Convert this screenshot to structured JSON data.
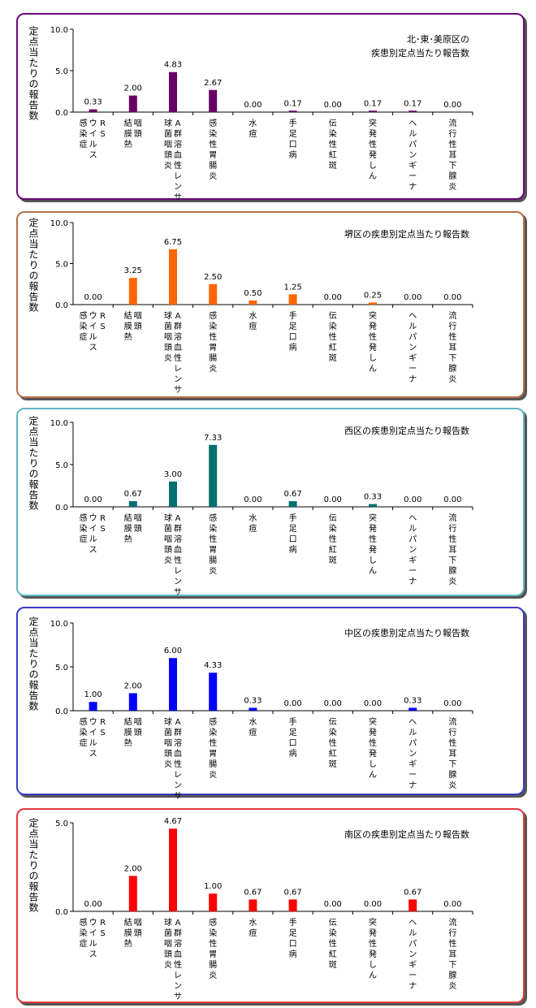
{
  "categories_lines": [
    [
      "RS",
      "ウイルス",
      "感染症"
    ],
    [
      "咽頭",
      "結膜熱"
    ],
    [
      "A群溶血性レンサ",
      "球菌咽頭炎"
    ],
    [
      "感染性胃腸炎"
    ],
    [
      "水痘"
    ],
    [
      "手足口病"
    ],
    [
      "伝染性紅斑"
    ],
    [
      "突発性発しん"
    ],
    [
      "ヘルパンギーナ"
    ],
    [
      "流行性耳下腺炎"
    ]
  ],
  "chart_data": [
    {
      "type": "bar",
      "title": "北･東･美原区の\n疾患別定点当たり報告数",
      "ylabel": "定点当たりの報告数",
      "categories": [
        "RSウイルス感染症",
        "咽頭結膜熱",
        "A群溶血性レンサ球菌咽頭炎",
        "感染性胃腸炎",
        "水痘",
        "手足口病",
        "伝染性紅斑",
        "突発性発しん",
        "ヘルパンギーナ",
        "流行性耳下腺炎"
      ],
      "values": [
        0.33,
        2.0,
        4.83,
        2.67,
        0.0,
        0.17,
        0.0,
        0.17,
        0.17,
        0.0
      ],
      "value_labels": [
        "0.33",
        "2.00",
        "4.83",
        "2.67",
        "0.00",
        "0.17",
        "0.00",
        "0.17",
        "0.17",
        "0.00"
      ],
      "ylim": [
        0,
        10
      ],
      "yticks": [
        "0.0",
        "5.0",
        "10.0"
      ],
      "color": "#660066",
      "border_color": "#6a0a7a"
    },
    {
      "type": "bar",
      "title": "堺区の疾患別定点当たり報告数",
      "ylabel": "定点当たりの報告数",
      "categories": [
        "RSウイルス感染症",
        "咽頭結膜熱",
        "A群溶血性レンサ球菌咽頭炎",
        "感染性胃腸炎",
        "水痘",
        "手足口病",
        "伝染性紅斑",
        "突発性発しん",
        "ヘルパンギーナ",
        "流行性耳下腺炎"
      ],
      "values": [
        0.0,
        3.25,
        6.75,
        2.5,
        0.5,
        1.25,
        0.0,
        0.25,
        0.0,
        0.0
      ],
      "value_labels": [
        "0.00",
        "3.25",
        "6.75",
        "2.50",
        "0.50",
        "1.25",
        "0.00",
        "0.25",
        "0.00",
        "0.00"
      ],
      "ylim": [
        0,
        10
      ],
      "yticks": [
        "0.0",
        "5.0",
        "10.0"
      ],
      "color": "#ff6600",
      "border_color": "#b5704a"
    },
    {
      "type": "bar",
      "title": "西区の疾患別定点当たり報告数",
      "ylabel": "定点当たりの報告数",
      "categories": [
        "RSウイルス感染症",
        "咽頭結膜熱",
        "A群溶血性レンサ球菌咽頭炎",
        "感染性胃腸炎",
        "水痘",
        "手足口病",
        "伝染性紅斑",
        "突発性発しん",
        "ヘルパンギーナ",
        "流行性耳下腺炎"
      ],
      "values": [
        0.0,
        0.67,
        3.0,
        7.33,
        0.0,
        0.67,
        0.0,
        0.33,
        0.0,
        0.0
      ],
      "value_labels": [
        "0.00",
        "0.67",
        "3.00",
        "7.33",
        "0.00",
        "0.67",
        "0.00",
        "0.33",
        "0.00",
        "0.00"
      ],
      "ylim": [
        0,
        10
      ],
      "yticks": [
        "0.0",
        "5.0",
        "10.0"
      ],
      "color": "#006f6f",
      "border_color": "#5fb8c0"
    },
    {
      "type": "bar",
      "title": "中区の疾患別定点当たり報告数",
      "ylabel": "定点当たりの報告数",
      "categories": [
        "RSウイルス感染症",
        "咽頭結膜熱",
        "A群溶血性レンサ球菌咽頭炎",
        "感染性胃腸炎",
        "水痘",
        "手足口病",
        "伝染性紅斑",
        "突発性発しん",
        "ヘルパンギーナ",
        "流行性耳下腺炎"
      ],
      "values": [
        1.0,
        2.0,
        6.0,
        4.33,
        0.33,
        0.0,
        0.0,
        0.0,
        0.33,
        0.0
      ],
      "value_labels": [
        "1.00",
        "2.00",
        "6.00",
        "4.33",
        "0.33",
        "0.00",
        "0.00",
        "0.00",
        "0.33",
        "0.00"
      ],
      "ylim": [
        0,
        10
      ],
      "yticks": [
        "0.0",
        "5.0",
        "10.0"
      ],
      "color": "#0000ff",
      "border_color": "#3a3ac8"
    },
    {
      "type": "bar",
      "title": "南区の疾患別定点当たり報告数",
      "ylabel": "定点当たりの報告数",
      "categories": [
        "RSウイルス感染症",
        "咽頭結膜熱",
        "A群溶血性レンサ球菌咽頭炎",
        "感染性胃腸炎",
        "水痘",
        "手足口病",
        "伝染性紅斑",
        "突発性発しん",
        "ヘルパンギーナ",
        "流行性耳下腺炎"
      ],
      "values": [
        0.0,
        2.0,
        4.67,
        1.0,
        0.67,
        0.67,
        0.0,
        0.0,
        0.67,
        0.0
      ],
      "value_labels": [
        "0.00",
        "2.00",
        "4.67",
        "1.00",
        "0.67",
        "0.67",
        "0.00",
        "0.00",
        "0.67",
        "0.00"
      ],
      "ylim": [
        0,
        5
      ],
      "yticks": [
        "0.0",
        "5.0"
      ],
      "color": "#ff0000",
      "border_color": "#e03a3a"
    }
  ]
}
